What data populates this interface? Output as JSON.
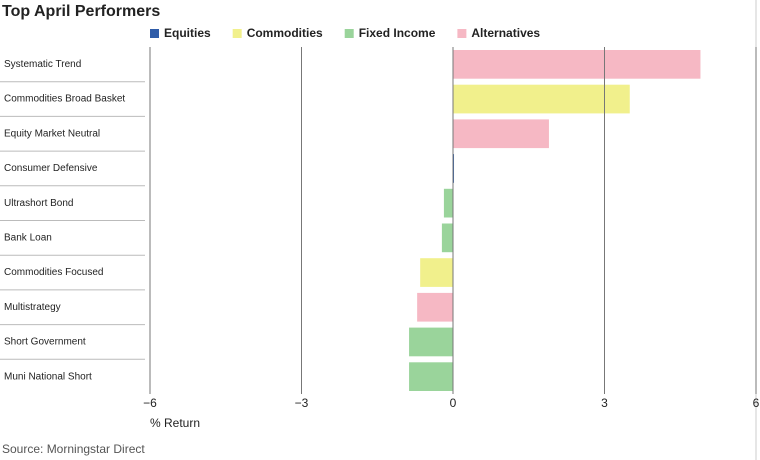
{
  "chart_data": {
    "type": "hbar",
    "title": "Top April Performers",
    "categories": [
      "Systematic Trend",
      "Commodities Broad Basket",
      "Equity Market Neutral",
      "Consumer Defensive",
      "Ultrashort Bond",
      "Bank Loan",
      "Commodities Focused",
      "Multistrategy",
      "Short Government",
      "Muni National Short"
    ],
    "series": [
      {
        "name": "Equities",
        "color": "#2f5ca8",
        "values": [
          null,
          null,
          null,
          0.02,
          null,
          null,
          null,
          null,
          null,
          null
        ]
      },
      {
        "name": "Commodities",
        "color": "#f1f08c",
        "values": [
          null,
          3.5,
          null,
          null,
          null,
          null,
          -0.65,
          null,
          null,
          null
        ]
      },
      {
        "name": "Fixed Income",
        "color": "#9ad49b",
        "values": [
          null,
          null,
          null,
          null,
          -0.18,
          -0.22,
          null,
          null,
          -0.87,
          -0.87
        ]
      },
      {
        "name": "Alternatives",
        "color": "#f6b8c4",
        "values": [
          4.9,
          null,
          1.9,
          null,
          null,
          null,
          null,
          -0.71,
          null,
          null
        ]
      }
    ],
    "xlim": [
      -6,
      6
    ],
    "xticks": [
      {
        "value": -6,
        "label": "−6"
      },
      {
        "value": -3,
        "label": "−3"
      },
      0,
      3,
      6
    ],
    "xlabel": "% Return",
    "source": "Source: Morningstar Direct",
    "grid": true
  }
}
